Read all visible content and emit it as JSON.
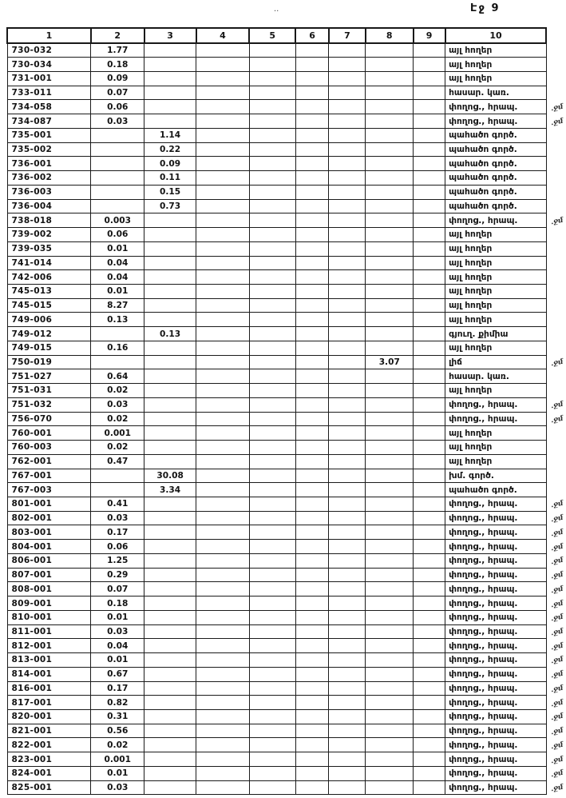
{
  "page": {
    "title": "Էջ 9",
    "stray_mark": ".."
  },
  "table": {
    "headers": [
      "1",
      "2",
      "3",
      "4",
      "5",
      "6",
      "7",
      "8",
      "9",
      "10"
    ],
    "margin_note_glyph": ".ջմ",
    "rows": [
      {
        "code": "730-032",
        "col2": "1.77",
        "col10": "այլ հողեր"
      },
      {
        "code": "730-034",
        "col2": "0.18",
        "col10": "այլ հողեր"
      },
      {
        "code": "731-001",
        "col2": "0.09",
        "col10": "այլ հողեր"
      },
      {
        "code": "733-011",
        "col2": "0.07",
        "col10": "հասար. կառ."
      },
      {
        "code": "734-058",
        "col2": "0.06",
        "col10": "փողոց., հրապ.",
        "margin_note": ".ջմ"
      },
      {
        "code": "734-087",
        "col2": "0.03",
        "col10": "փողոց., հրապ.",
        "margin_note": ".ջմ"
      },
      {
        "code": "735-001",
        "col3": "1.14",
        "col10": "պահածո գործ."
      },
      {
        "code": "735-002",
        "col3": "0.22",
        "col10": "պահածո գործ."
      },
      {
        "code": "736-001",
        "col3": "0.09",
        "col10": "պահածո գործ."
      },
      {
        "code": "736-002",
        "col3": "0.11",
        "col10": "պահածո գործ."
      },
      {
        "code": "736-003",
        "col3": "0.15",
        "col10": "պահածո գործ."
      },
      {
        "code": "736-004",
        "col3": "0.73",
        "col10": "պահածո գործ."
      },
      {
        "code": "738-018",
        "col2": "0.003",
        "col10": "փողոց., հրապ.",
        "margin_note": ".ջմ"
      },
      {
        "code": "739-002",
        "col2": "0.06",
        "col10": "այլ հողեր"
      },
      {
        "code": "739-035",
        "col2": "0.01",
        "col10": "այլ հողեր"
      },
      {
        "code": "741-014",
        "col2": "0.04",
        "col10": "այլ հողեր"
      },
      {
        "code": "742-006",
        "col2": "0.04",
        "col10": "այլ հողեր"
      },
      {
        "code": "745-013",
        "col2": "0.01",
        "col10": "այլ հողեր"
      },
      {
        "code": "745-015",
        "col2": "8.27",
        "col10": "այլ հողեր"
      },
      {
        "code": "749-006",
        "col2": "0.13",
        "col10": "այլ հողեր"
      },
      {
        "code": "749-012",
        "col3": "0.13",
        "col10": "գյուղ. քիմիա"
      },
      {
        "code": "749-015",
        "col2": "0.16",
        "col10": "այլ հողեր"
      },
      {
        "code": "750-019",
        "col8": "3.07",
        "col10": "լիճ",
        "margin_note": ".ջմ"
      },
      {
        "code": "751-027",
        "col2": "0.64",
        "col10": "հասար. կառ."
      },
      {
        "code": "751-031",
        "col2": "0.02",
        "col10": "այլ հողեր"
      },
      {
        "code": "751-032",
        "col2": "0.03",
        "col10": "փողոց., հրապ.",
        "margin_note": ".ջմ"
      },
      {
        "code": "756-070",
        "col2": "0.02",
        "col10": "փողոց., հրապ.",
        "margin_note": ".ջմ"
      },
      {
        "code": "760-001",
        "col2": "0.001",
        "col10": "այլ հողեր"
      },
      {
        "code": "760-003",
        "col2": "0.02",
        "col10": "այլ հողեր"
      },
      {
        "code": "762-001",
        "col2": "0.47",
        "col10": "այլ հողեր"
      },
      {
        "code": "767-001",
        "col3": "30.08",
        "col10": "խմ. գործ."
      },
      {
        "code": "767-003",
        "col3": "3.34",
        "col10": "պահածո գործ."
      },
      {
        "code": "801-001",
        "col2": "0.41",
        "col10": "փողոց., հրապ.",
        "margin_note": ".ջմ"
      },
      {
        "code": "802-001",
        "col2": "0.03",
        "col10": "փողոց., հրապ.",
        "margin_note": ".ջմ"
      },
      {
        "code": "803-001",
        "col2": "0.17",
        "col10": "փողոց., հրապ.",
        "margin_note": ".ջմ"
      },
      {
        "code": "804-001",
        "col2": "0.06",
        "col10": "փողոց., հրապ.",
        "margin_note": ".ջմ"
      },
      {
        "code": "806-001",
        "col2": "1.25",
        "col10": "փողոց., հրապ.",
        "margin_note": ".ջմ"
      },
      {
        "code": "807-001",
        "col2": "0.29",
        "col10": "փողոց., հրապ.",
        "margin_note": ".ջմ"
      },
      {
        "code": "808-001",
        "col2": "0.07",
        "col10": "փողոց., հրապ.",
        "margin_note": ".ջմ"
      },
      {
        "code": "809-001",
        "col2": "0.18",
        "col10": "փողոց., հրապ.",
        "margin_note": ".ջմ"
      },
      {
        "code": "810-001",
        "col2": "0.01",
        "col10": "փողոց., հրապ.",
        "margin_note": ".ջմ"
      },
      {
        "code": "811-001",
        "col2": "0.03",
        "col10": "փողոց., հրապ.",
        "margin_note": ".ջմ"
      },
      {
        "code": "812-001",
        "col2": "0.04",
        "col10": "փողոց., հրապ.",
        "margin_note": ".ջմ"
      },
      {
        "code": "813-001",
        "col2": "0.01",
        "col10": "փողոց., հրապ.",
        "margin_note": ".ջմ"
      },
      {
        "code": "814-001",
        "col2": "0.67",
        "col10": "փողոց., հրապ.",
        "margin_note": ".ջմ"
      },
      {
        "code": "816-001",
        "col2": "0.17",
        "col10": "փողոց., հրապ.",
        "margin_note": ".ջմ"
      },
      {
        "code": "817-001",
        "col2": "0.82",
        "col10": "փողոց., հրապ.",
        "margin_note": ".ջմ"
      },
      {
        "code": "820-001",
        "col2": "0.31",
        "col10": "փողոց., հրապ.",
        "margin_note": ".ջմ"
      },
      {
        "code": "821-001",
        "col2": "0.56",
        "col10": "փողոց., հրապ.",
        "margin_note": ".ջմ"
      },
      {
        "code": "822-001",
        "col2": "0.02",
        "col10": "փողոց., հրապ.",
        "margin_note": ".ջմ"
      },
      {
        "code": "823-001",
        "col2": "0.001",
        "col10": "փողոց., հրապ.",
        "margin_note": ".ջմ"
      },
      {
        "code": "824-001",
        "col2": "0.01",
        "col10": "փողոց., հրապ.",
        "margin_note": ".ջմ"
      },
      {
        "code": "825-001",
        "col2": "0.03",
        "col10": "փողոց., հրապ.",
        "margin_note": ".ջմ"
      }
    ]
  }
}
